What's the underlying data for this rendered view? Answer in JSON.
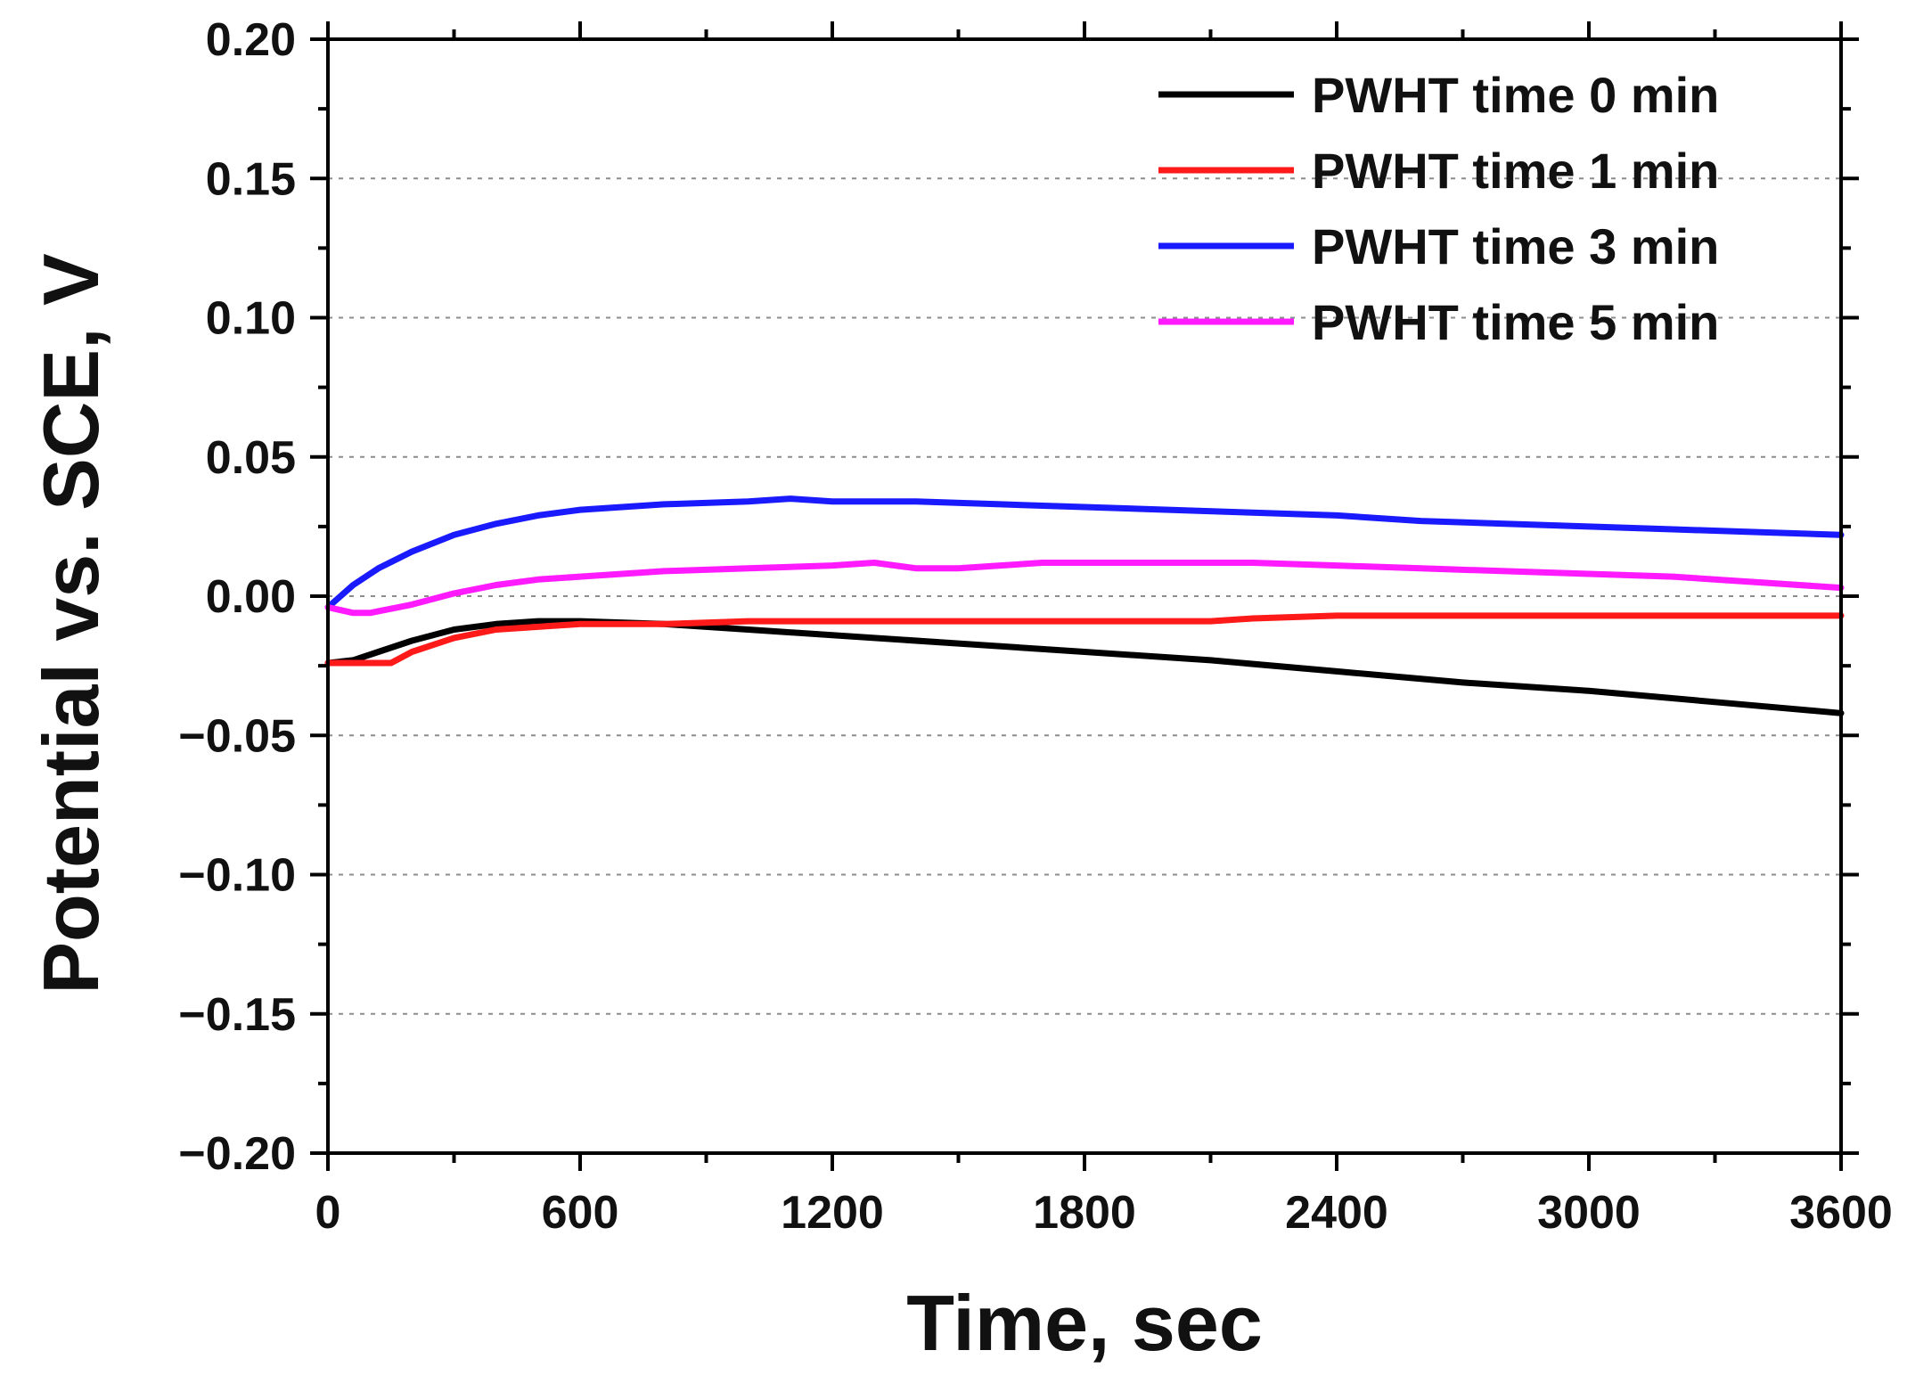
{
  "chart_data": {
    "type": "line",
    "title": "",
    "xlabel": "Time, sec",
    "ylabel": "Potential vs. SCE, V",
    "xlim": [
      0,
      3600
    ],
    "ylim": [
      -0.2,
      0.2
    ],
    "x_ticks": [
      0,
      600,
      1200,
      1800,
      2400,
      3000,
      3600
    ],
    "x_tick_labels": [
      "0",
      "600",
      "1200",
      "1800",
      "2400",
      "3000",
      "3600"
    ],
    "y_ticks": [
      0.2,
      0.15,
      0.1,
      0.05,
      0.0,
      -0.05,
      -0.1,
      -0.15,
      -0.2
    ],
    "y_tick_labels": [
      "0.20",
      "0.15",
      "0.10",
      "0.05",
      "0.00",
      "−0.05",
      "−0.10",
      "−0.15",
      "−0.20"
    ],
    "grid": "horizontal dotted",
    "legend_position": "top-right",
    "series": [
      {
        "name": "PWHT time 0 min",
        "color": "#000000",
        "x": [
          0,
          60,
          120,
          200,
          300,
          400,
          500,
          600,
          800,
          1000,
          1200,
          1500,
          1800,
          2100,
          2400,
          2700,
          3000,
          3300,
          3600
        ],
        "values": [
          -0.024,
          -0.023,
          -0.02,
          -0.016,
          -0.012,
          -0.01,
          -0.009,
          -0.009,
          -0.01,
          -0.012,
          -0.014,
          -0.017,
          -0.02,
          -0.023,
          -0.027,
          -0.031,
          -0.034,
          -0.038,
          -0.042
        ]
      },
      {
        "name": "PWHT time 1 min",
        "color": "#ff1a1a",
        "x": [
          0,
          60,
          150,
          200,
          300,
          400,
          500,
          600,
          800,
          1000,
          1200,
          1500,
          1800,
          2100,
          2200,
          2400,
          2700,
          3000,
          3300,
          3600
        ],
        "values": [
          -0.024,
          -0.024,
          -0.024,
          -0.02,
          -0.015,
          -0.012,
          -0.011,
          -0.01,
          -0.01,
          -0.009,
          -0.009,
          -0.009,
          -0.009,
          -0.009,
          -0.008,
          -0.007,
          -0.007,
          -0.007,
          -0.007,
          -0.007
        ]
      },
      {
        "name": "PWHT time 3 min",
        "color": "#1a1aff",
        "x": [
          0,
          60,
          120,
          200,
          300,
          400,
          500,
          600,
          700,
          800,
          1000,
          1100,
          1200,
          1400,
          1600,
          1800,
          2000,
          2200,
          2400,
          2600,
          2800,
          3000,
          3200,
          3400,
          3600
        ],
        "values": [
          -0.004,
          0.004,
          0.01,
          0.016,
          0.022,
          0.026,
          0.029,
          0.031,
          0.032,
          0.033,
          0.034,
          0.035,
          0.034,
          0.034,
          0.033,
          0.032,
          0.031,
          0.03,
          0.029,
          0.027,
          0.026,
          0.025,
          0.024,
          0.023,
          0.022
        ]
      },
      {
        "name": "PWHT time 5 min",
        "color": "#ff1aff",
        "x": [
          0,
          60,
          100,
          200,
          300,
          400,
          500,
          600,
          800,
          1000,
          1200,
          1300,
          1400,
          1500,
          1600,
          1700,
          1800,
          2000,
          2200,
          2400,
          2600,
          2800,
          3000,
          3200,
          3400,
          3600
        ],
        "values": [
          -0.004,
          -0.006,
          -0.006,
          -0.003,
          0.001,
          0.004,
          0.006,
          0.007,
          0.009,
          0.01,
          0.011,
          0.012,
          0.01,
          0.01,
          0.011,
          0.012,
          0.012,
          0.012,
          0.012,
          0.011,
          0.01,
          0.009,
          0.008,
          0.007,
          0.005,
          0.003
        ]
      }
    ]
  }
}
